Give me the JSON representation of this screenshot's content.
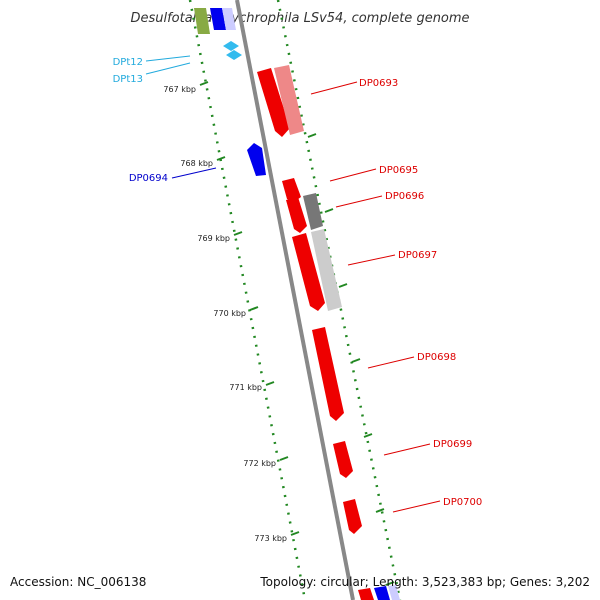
{
  "title": "Desulfotalea psychrophila LSv54, complete genome",
  "footer": {
    "accession": "Accession: NC_006138",
    "topology": "Topology: circular; Length: 3,523,383 bp; Genes: 3,202"
  },
  "kbp_ticks": [
    "767 kbp",
    "768 kbp",
    "769 kbp",
    "770 kbp",
    "771 kbp",
    "772 kbp",
    "773 kbp"
  ],
  "gene_labels": [
    {
      "name": "DPt12",
      "color": "#22aadd"
    },
    {
      "name": "DPt13",
      "color": "#22aadd"
    },
    {
      "name": "DP0693",
      "color": "#dd0000"
    },
    {
      "name": "DP0694",
      "color": "#0000cc"
    },
    {
      "name": "DP0695",
      "color": "#dd0000"
    },
    {
      "name": "DP0696",
      "color": "#dd0000"
    },
    {
      "name": "DP0697",
      "color": "#dd0000"
    },
    {
      "name": "DP0698",
      "color": "#dd0000"
    },
    {
      "name": "DP0699",
      "color": "#dd0000"
    },
    {
      "name": "DP0700",
      "color": "#dd0000"
    }
  ],
  "colors": {
    "backbone": "#888888",
    "tick_dots": "#228822",
    "gene_forward": "#ff0000",
    "gene_reverse": "#0000ee",
    "trna": "#33bbee",
    "homolog_light": "#ee8888",
    "homolog_grey": "#777777",
    "homolog_light_grey": "#cccccc"
  }
}
